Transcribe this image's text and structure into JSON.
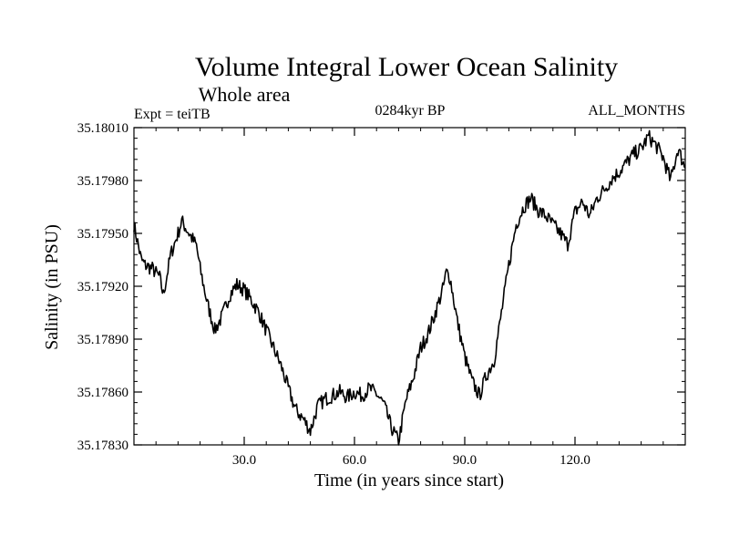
{
  "chart_data": {
    "type": "line",
    "title": "Volume Integral Lower Ocean Salinity",
    "subtitle": "Whole area",
    "left_note": "Expt = teiTB",
    "center_note": "0284kyr BP",
    "right_note": "ALL_MONTHS",
    "xlabel": "Time (in years since start)",
    "ylabel": "Salinity (in PSU)",
    "xlim": [
      0,
      150
    ],
    "ylim": [
      35.1783,
      35.1801
    ],
    "x_ticks": [
      30,
      60,
      90,
      120
    ],
    "x_tick_labels": [
      "30.0",
      "60.0",
      "90.0",
      "120.0"
    ],
    "y_ticks": [
      35.1783,
      35.1786,
      35.1789,
      35.1792,
      35.1795,
      35.1798,
      35.1801
    ],
    "y_tick_labels": [
      "35.17830",
      "35.17860",
      "35.17890",
      "35.17920",
      "35.17950",
      "35.17980",
      "35.18010"
    ],
    "series": [
      {
        "name": "Salinity",
        "color": "#000000",
        "x": [
          0,
          2,
          3,
          5,
          7,
          8,
          10,
          12,
          13,
          15,
          17,
          18,
          20,
          22,
          24,
          26,
          28,
          30,
          32,
          34,
          36,
          38,
          40,
          42,
          44,
          46,
          48,
          50,
          52,
          54,
          56,
          58,
          60,
          62,
          64,
          66,
          68,
          70,
          72,
          74,
          76,
          78,
          80,
          82,
          84,
          85,
          86,
          88,
          90,
          92,
          94,
          96,
          98,
          100,
          102,
          104,
          106,
          108,
          110,
          112,
          114,
          116,
          118,
          120,
          122,
          124,
          126,
          128,
          130,
          132,
          134,
          136,
          138,
          140,
          142,
          144,
          146,
          148,
          150
        ],
        "y": [
          35.17955,
          35.17935,
          35.17932,
          35.1793,
          35.17925,
          35.17915,
          35.17938,
          35.1795,
          35.17957,
          35.1795,
          35.17943,
          35.1793,
          35.1791,
          35.17895,
          35.17903,
          35.17915,
          35.17921,
          35.17918,
          35.17912,
          35.17905,
          35.17895,
          35.17885,
          35.17875,
          35.17862,
          35.1785,
          35.17845,
          35.17838,
          35.17852,
          35.17856,
          35.17858,
          35.1786,
          35.17857,
          35.1786,
          35.17858,
          35.17862,
          35.17859,
          35.17853,
          35.1784,
          35.17832,
          35.17855,
          35.17868,
          35.17885,
          35.17893,
          35.17905,
          35.17918,
          35.17928,
          35.17925,
          35.179,
          35.1788,
          35.17866,
          35.17858,
          35.1787,
          35.17878,
          35.17905,
          35.17932,
          35.17955,
          35.17965,
          35.1797,
          35.17963,
          35.1796,
          35.17955,
          35.1795,
          35.17944,
          35.17962,
          35.17968,
          35.1796,
          35.1797,
          35.17975,
          35.17981,
          35.17985,
          35.1799,
          35.17995,
          35.17998,
          35.18005,
          35.18,
          35.17993,
          35.1798,
          35.17998,
          35.17987
        ]
      }
    ]
  }
}
